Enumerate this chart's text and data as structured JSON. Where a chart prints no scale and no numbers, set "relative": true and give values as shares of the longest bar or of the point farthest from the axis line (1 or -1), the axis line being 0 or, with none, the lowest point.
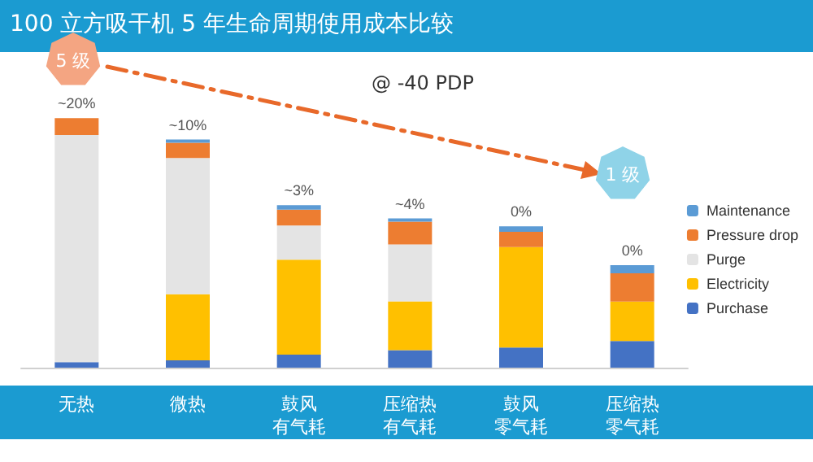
{
  "chart_data": {
    "type": "bar",
    "title": "100 立方吸干机 5 年生命周期使用成本比较",
    "subtitle": "@ -40 PDP",
    "categories": [
      "无热",
      "微热",
      "鼓风有气耗",
      "压缩热有气耗",
      "鼓风零气耗",
      "压缩热零气耗"
    ],
    "stacked": true,
    "relative": true,
    "legend": "right",
    "series": [
      {
        "name": "Purchase",
        "color": "#4472c4",
        "values": [
          0.022,
          0.029,
          0.052,
          0.07,
          0.081,
          0.107
        ]
      },
      {
        "name": "Electricity",
        "color": "#ffc000",
        "values": [
          0,
          0.265,
          0.381,
          0.196,
          0.402,
          0.158
        ]
      },
      {
        "name": "Purge",
        "color": "#e4e4e4",
        "values": [
          0.91,
          0.546,
          0.137,
          0.228,
          0,
          0
        ]
      },
      {
        "name": "Pressure drop",
        "color": "#ed7d31",
        "values": [
          0.068,
          0.061,
          0.063,
          0.091,
          0.061,
          0.113
        ]
      },
      {
        "name": "Maintenance",
        "color": "#5b9bd5",
        "values": [
          0,
          0.013,
          0.018,
          0.013,
          0.022,
          0.033
        ]
      }
    ],
    "annotations": [
      "5 级",
      "1 级",
      "~20%",
      "~10%",
      "~3%",
      "~4%",
      "0%",
      "0%"
    ]
  }
}
